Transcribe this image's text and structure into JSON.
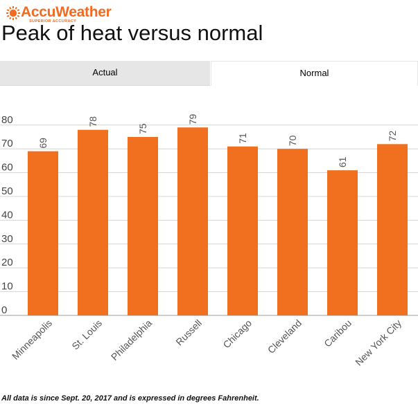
{
  "brand": {
    "name": "AccuWeather",
    "tagline": "SUPERIOR ACCURACY",
    "color": "#f26b21",
    "icon": "sun-icon"
  },
  "title": "Peak of heat versus normal",
  "tabs": [
    {
      "label": "Actual",
      "active": false
    },
    {
      "label": "Normal",
      "active": true
    }
  ],
  "footnote": "All data is since Sept. 20, 2017 and is expressed in degrees Fahrenheit.",
  "chart_data": {
    "type": "bar",
    "categories": [
      "Minneapolis",
      "St. Louis",
      "Philadelphia",
      "Russell",
      "Chicago",
      "Cleveland",
      "Caribou",
      "New York City"
    ],
    "values": [
      69,
      78,
      75,
      79,
      71,
      70,
      61,
      72
    ],
    "data_labels": [
      "69",
      "78",
      "75",
      "79",
      "71",
      "70",
      "61",
      "72"
    ],
    "yticks": [
      "0",
      "10",
      "20",
      "30",
      "40",
      "50",
      "60",
      "70",
      "80"
    ],
    "ylim": [
      0,
      80
    ],
    "grid": true,
    "bar_color": "#f07020",
    "title": "",
    "xlabel": "",
    "ylabel": ""
  }
}
